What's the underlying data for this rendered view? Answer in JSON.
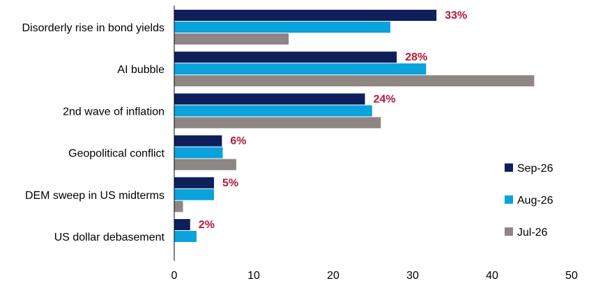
{
  "chart_data": {
    "type": "bar",
    "orientation": "horizontal",
    "categories": [
      "Disorderly rise in bond yields",
      "AI bubble",
      "2nd wave of inflation",
      "Geopolitical conflict",
      "DEM sweep in US midterms",
      "US dollar debasement"
    ],
    "series": [
      {
        "name": "Sep-26",
        "color": "#0e1f5b",
        "values": [
          33,
          28,
          24,
          6,
          5,
          2
        ]
      },
      {
        "name": "Aug-26",
        "color": "#0aa3dc",
        "values": [
          27.2,
          31.7,
          24.9,
          6.1,
          5,
          2.8
        ]
      },
      {
        "name": "Jul-26",
        "color": "#8e8585",
        "values": [
          14.4,
          45.3,
          26,
          7.8,
          1.1,
          0
        ]
      }
    ],
    "data_labels": [
      "33%",
      "28%",
      "24%",
      "6%",
      "5%",
      "2%"
    ],
    "data_label_color": "#b5173a",
    "xlim": [
      0,
      50
    ],
    "xticks": [
      0,
      10,
      20,
      30,
      40,
      50
    ],
    "grid": false,
    "legend_position": "right"
  }
}
